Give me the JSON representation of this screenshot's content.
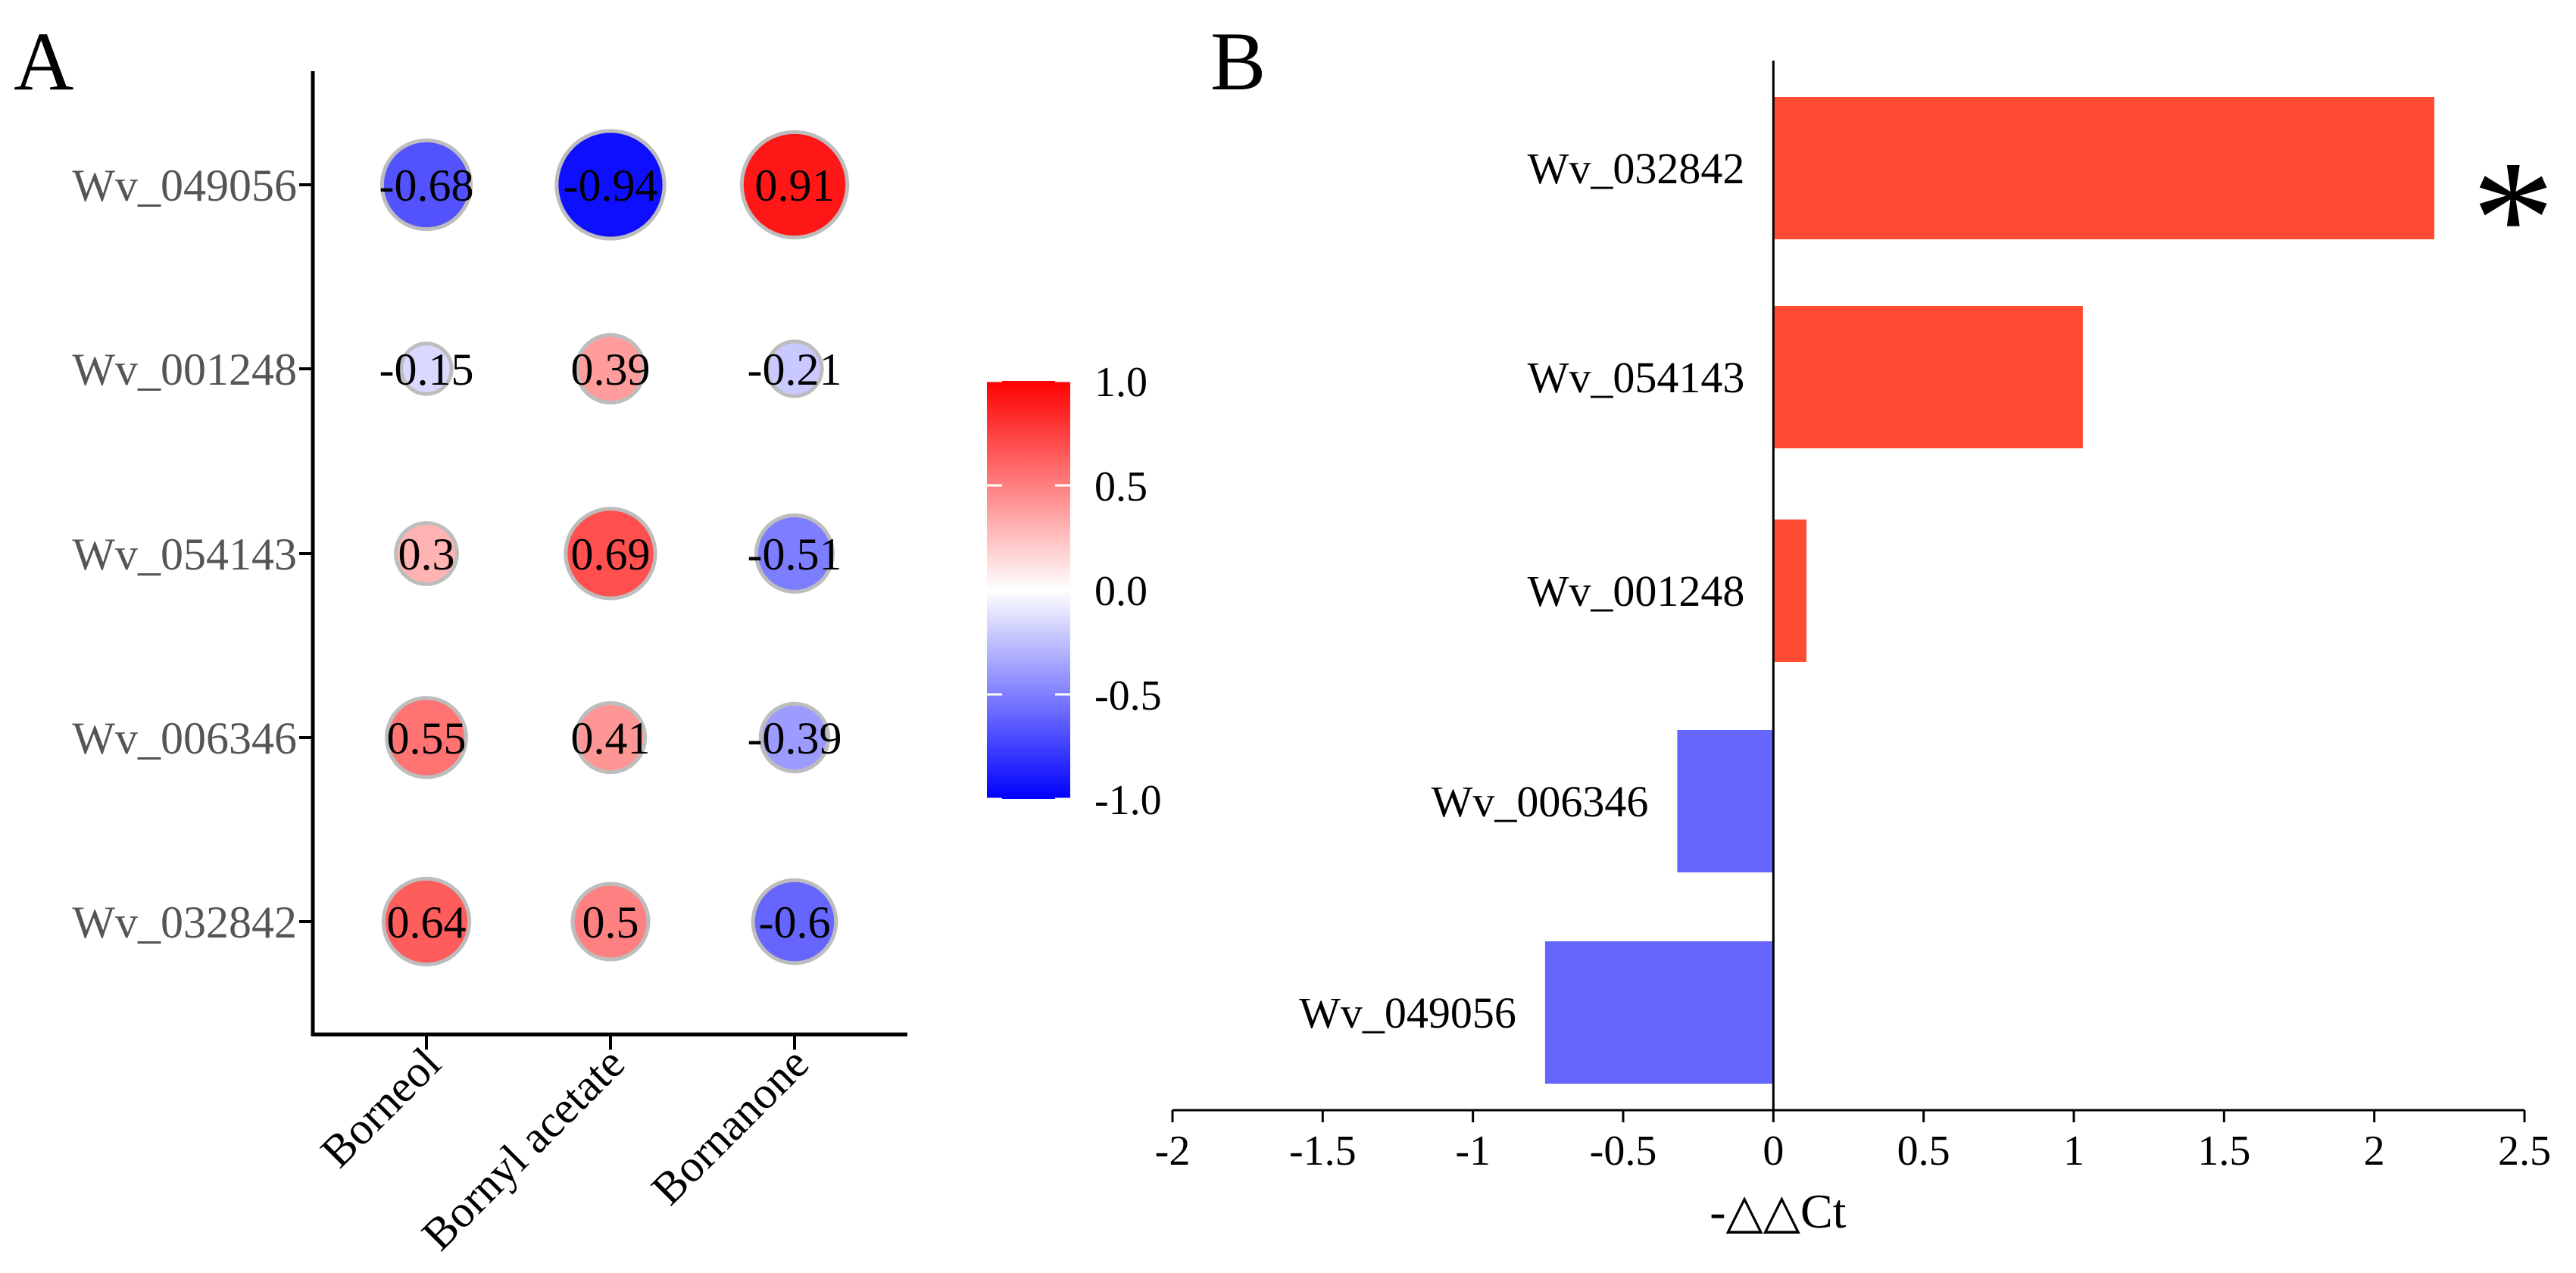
{
  "panels": {
    "a_label": "A",
    "b_label": "B"
  },
  "colors": {
    "high": "#ff0000",
    "mid": "#ffffff",
    "low": "#0000ff",
    "bar_pos": "#ff4b33",
    "bar_neg": "#6666ff",
    "circle_stroke": "#bdbdbd"
  },
  "chart_data": [
    {
      "type": "heatmap",
      "title": "",
      "rows": [
        "Wv_049056",
        "Wv_001248",
        "Wv_054143",
        "Wv_006346",
        "Wv_032842"
      ],
      "columns": [
        "Borneol",
        "Bornyl acetate",
        "Bornanone"
      ],
      "values": [
        [
          -0.68,
          -0.94,
          0.91
        ],
        [
          -0.15,
          0.39,
          -0.21
        ],
        [
          0.3,
          0.69,
          -0.51
        ],
        [
          0.55,
          0.41,
          -0.39
        ],
        [
          0.64,
          0.5,
          -0.6
        ]
      ],
      "value_labels": [
        [
          "-0.68",
          "-0.94",
          "0.91"
        ],
        [
          "-0.15",
          "0.39",
          "-0.21"
        ],
        [
          "0.3",
          "0.69",
          "-0.51"
        ],
        [
          "0.55",
          "0.41",
          "-0.39"
        ],
        [
          "0.64",
          "0.5",
          "-0.6"
        ]
      ],
      "colorbar": {
        "range": [
          -1,
          1
        ],
        "ticks": [
          "1.0",
          "0.5",
          "0.0",
          "-0.5",
          "-1.0"
        ],
        "tick_values": [
          1.0,
          0.5,
          0.0,
          -0.5,
          -1.0
        ]
      }
    },
    {
      "type": "bar",
      "orientation": "horizontal",
      "categories": [
        "Wv_032842",
        "Wv_054143",
        "Wv_001248",
        "Wv_006346",
        "Wv_049056"
      ],
      "values": [
        2.2,
        1.03,
        0.11,
        -0.32,
        -0.76
      ],
      "xlabel": "-△△Ct",
      "ylabel": "",
      "xlim": [
        -2,
        2.5
      ],
      "xticks": [
        -2,
        -1.5,
        -1,
        -0.5,
        0,
        0.5,
        1,
        1.5,
        2,
        2.5
      ],
      "xtick_labels": [
        "-2",
        "-1.5",
        "-1",
        "-0.5",
        "0",
        "0.5",
        "1",
        "1.5",
        "2",
        "2.5"
      ],
      "annotations": [
        {
          "category": "Wv_032842",
          "text": "*"
        }
      ]
    }
  ]
}
